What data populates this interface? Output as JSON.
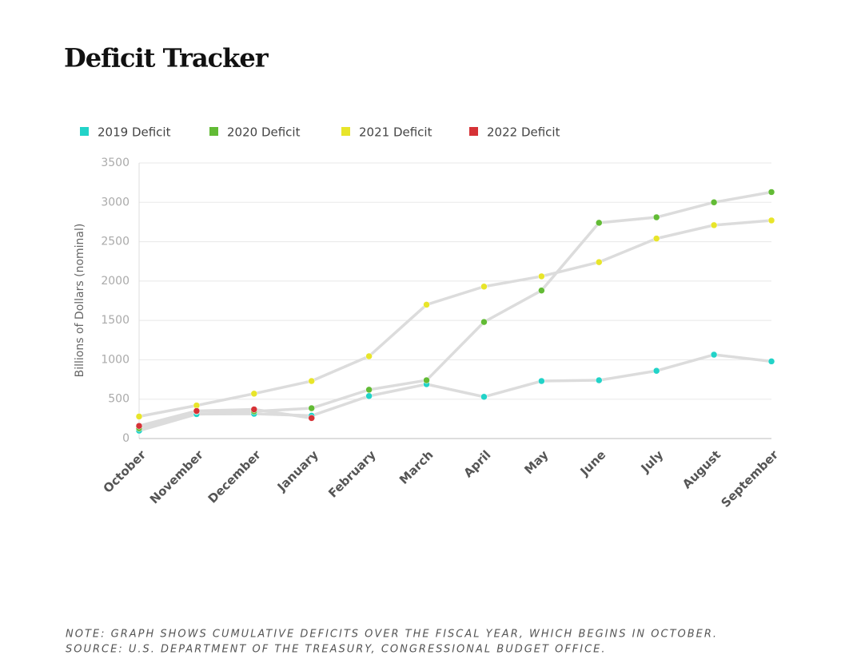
{
  "title": "Deficit Tracker",
  "note": "NOTE: GRAPH SHOWS CUMULATIVE DEFICITS OVER THE FISCAL YEAR, WHICH BEGINS IN OCTOBER.",
  "source": "SOURCE: U.S. DEPARTMENT OF THE TREASURY, CONGRESSIONAL BUDGET OFFICE.",
  "chart_data": {
    "type": "line",
    "y_label": "Billions of Dollars (nominal)",
    "categories": [
      "October",
      "November",
      "December",
      "January",
      "February",
      "March",
      "April",
      "May",
      "June",
      "July",
      "August",
      "September"
    ],
    "series": [
      {
        "name": "2019 Deficit",
        "color": "#22d3c8",
        "values": [
          100,
          310,
          314,
          290,
          540,
          690,
          530,
          730,
          740,
          860,
          1065,
          980
        ]
      },
      {
        "name": "2020 Deficit",
        "color": "#62bb35",
        "values": [
          130,
          345,
          345,
          385,
          620,
          740,
          1480,
          1880,
          2740,
          2810,
          3000,
          3130
        ]
      },
      {
        "name": "2021 Deficit",
        "color": "#e8e52a",
        "values": [
          280,
          420,
          570,
          730,
          1045,
          1700,
          1930,
          2060,
          2240,
          2540,
          2710,
          2770
        ]
      },
      {
        "name": "2022 Deficit",
        "color": "#d63236",
        "values": [
          160,
          350,
          370,
          260,
          null,
          null,
          null,
          null,
          null,
          null,
          null,
          null
        ]
      }
    ],
    "ylim": [
      0,
      3500
    ],
    "yticks": [
      0,
      500,
      1000,
      1500,
      2000,
      2500,
      3000,
      3500
    ],
    "grid": true,
    "line_color": "#dcdcdc"
  }
}
